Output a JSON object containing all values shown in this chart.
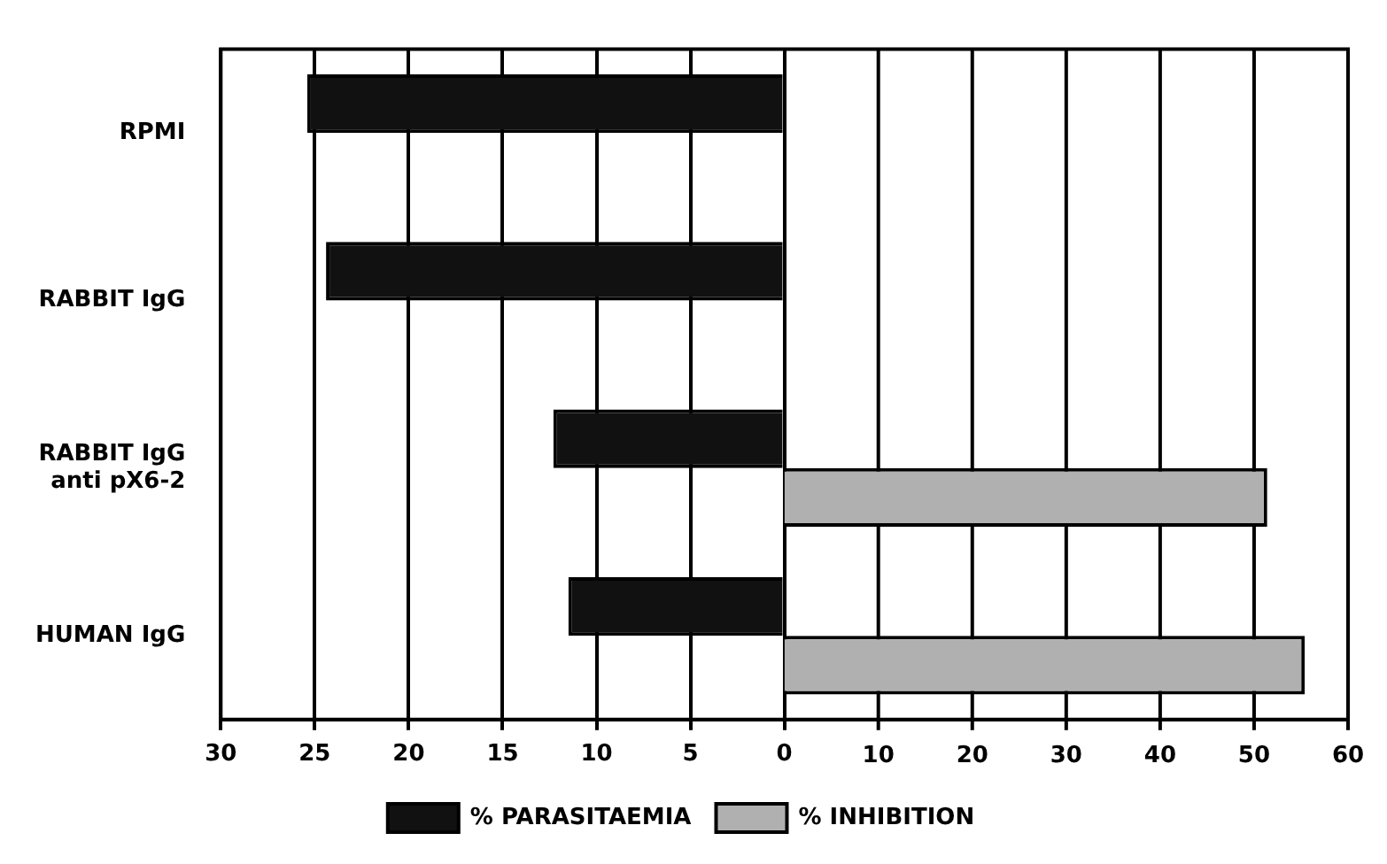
{
  "chart_data": {
    "type": "bar",
    "orientation": "horizontal",
    "categories": [
      "RPMI",
      "RABBIT IgG",
      "RABBIT IgG\nanti pX6-2",
      "HUMAN IgG"
    ],
    "series": [
      {
        "name": "% PARASITAEMIA",
        "color": "#111111",
        "values": [
          25.4,
          24.4,
          12.3,
          11.5
        ]
      },
      {
        "name": "% INHIBITION",
        "color": "#b0b0b0",
        "values": [
          null,
          null,
          51.4,
          55.4
        ],
        "axis": "x2"
      }
    ],
    "xlim": [
      30,
      -30
    ],
    "xticks": [
      30,
      25,
      20,
      15,
      10,
      5,
      0
    ],
    "x2lim": [
      -60,
      60
    ],
    "x2ticks": [
      10,
      20,
      30,
      40,
      50,
      60
    ],
    "grid": "x",
    "legend": "bottom"
  }
}
